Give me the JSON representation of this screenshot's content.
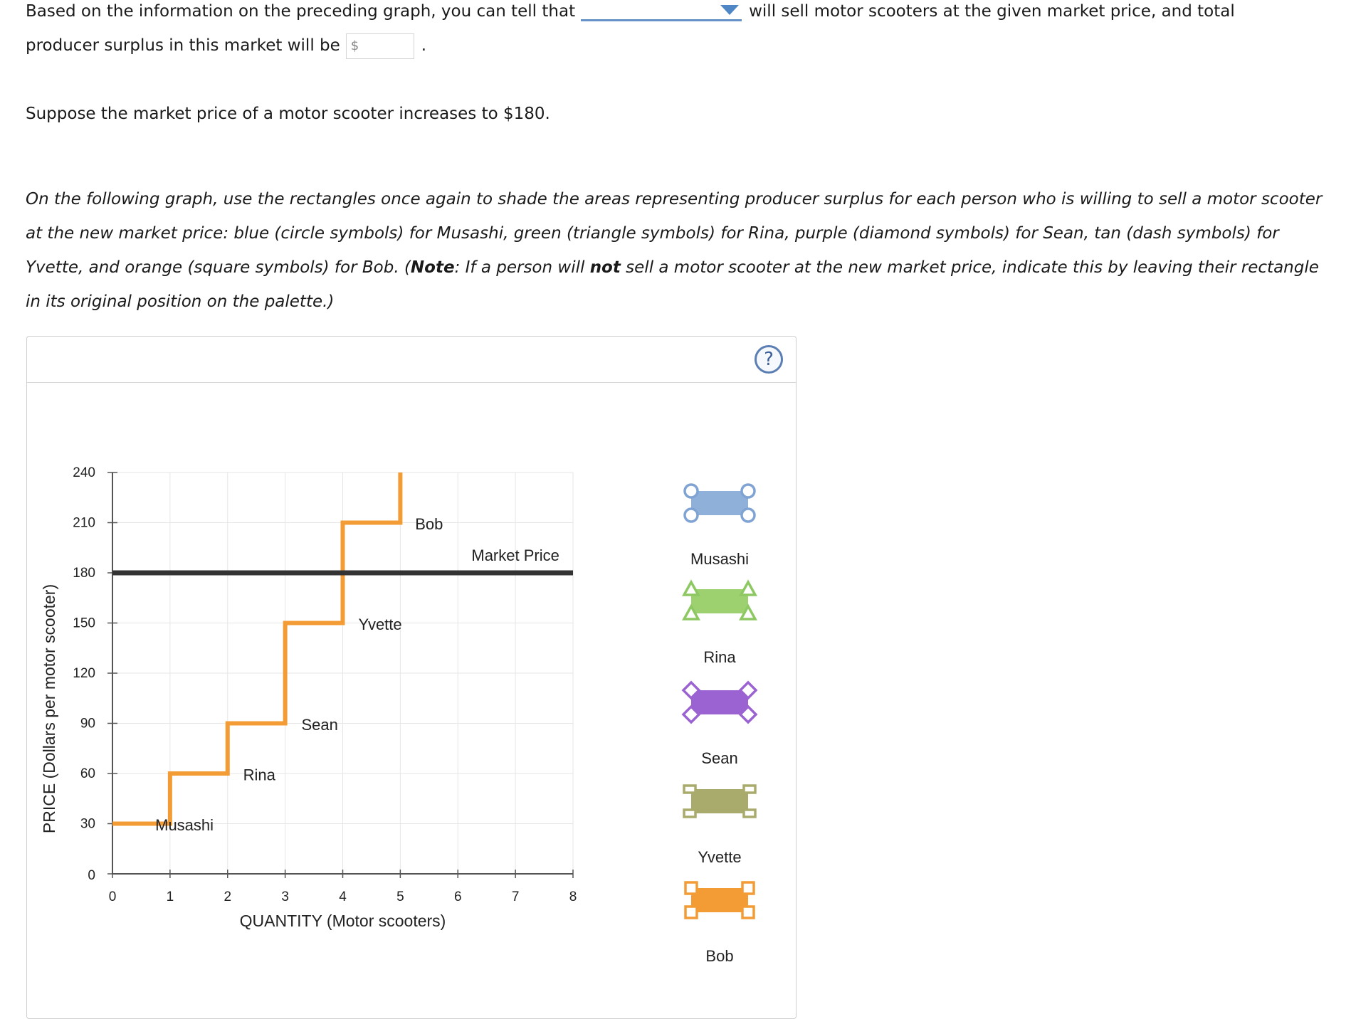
{
  "question": {
    "line1_prefix": "Based on the information on the preceding graph, you can tell that",
    "line1_suffix": "will sell motor scooters at the given market price, and total",
    "line2_prefix": "producer surplus in this market will be",
    "currency_symbol": "$",
    "period": ".",
    "price_change": "Suppose the market price of a motor scooter increases to $180.",
    "instr_a": "On the following graph, use the rectangles once again to shade the areas representing producer surplus for each person who is willing to sell a motor scooter at the new market price: blue (circle symbols) for Musashi, green (triangle symbols) for Rina, purple (diamond symbols) for Sean, tan (dash symbols) for Yvette, and orange (square symbols) for Bob. (",
    "instr_note": "Note",
    "instr_b": ": If a person will ",
    "instr_not": "not",
    "instr_c": " sell a motor scooter at the new market price, indicate this by leaving their rectangle in its original position on the palette.)"
  },
  "help_label": "?",
  "chart_data": {
    "type": "line",
    "xlabel": "QUANTITY (Motor scooters)",
    "ylabel": "PRICE (Dollars per motor scooter)",
    "xlim": [
      0,
      8
    ],
    "ylim": [
      0,
      240
    ],
    "xticks": [
      0,
      1,
      2,
      3,
      4,
      5,
      6,
      7,
      8
    ],
    "yticks": [
      0,
      30,
      60,
      90,
      120,
      150,
      180,
      210,
      240
    ],
    "grid": true,
    "supply_color": "#f39c35",
    "supply_steps": [
      {
        "name": "Musashi",
        "from": 0,
        "to": 1,
        "price": 30
      },
      {
        "name": "Rina",
        "from": 1,
        "to": 2,
        "price": 60
      },
      {
        "name": "Sean",
        "from": 2,
        "to": 3,
        "price": 90
      },
      {
        "name": "Yvette",
        "from": 3,
        "to": 4,
        "price": 150
      },
      {
        "name": "Bob",
        "from": 4,
        "to": 5,
        "price": 210
      }
    ],
    "step_labels": [
      {
        "text": "Musashi",
        "x": 1.25,
        "y": 26
      },
      {
        "text": "Rina",
        "x": 2.55,
        "y": 56
      },
      {
        "text": "Sean",
        "x": 3.6,
        "y": 86
      },
      {
        "text": "Yvette",
        "x": 4.65,
        "y": 146
      },
      {
        "text": "Bob",
        "x": 5.5,
        "y": 206
      }
    ],
    "market_price": {
      "label": "Market Price",
      "value": 180,
      "color": "#333333"
    },
    "palette": [
      {
        "name": "Musashi",
        "fill": "#8fb0d8",
        "stroke": "#7fa3d3",
        "symbol": "circle"
      },
      {
        "name": "Rina",
        "fill": "#9dd170",
        "stroke": "#8dc862",
        "symbol": "triangle"
      },
      {
        "name": "Sean",
        "fill": "#9b63d1",
        "stroke": "#9b63d1",
        "symbol": "diamond"
      },
      {
        "name": "Yvette",
        "fill": "#a8ab6b",
        "stroke": "#a8ab6b",
        "symbol": "dash"
      },
      {
        "name": "Bob",
        "fill": "#f39c35",
        "stroke": "#f39c35",
        "symbol": "square"
      }
    ]
  }
}
